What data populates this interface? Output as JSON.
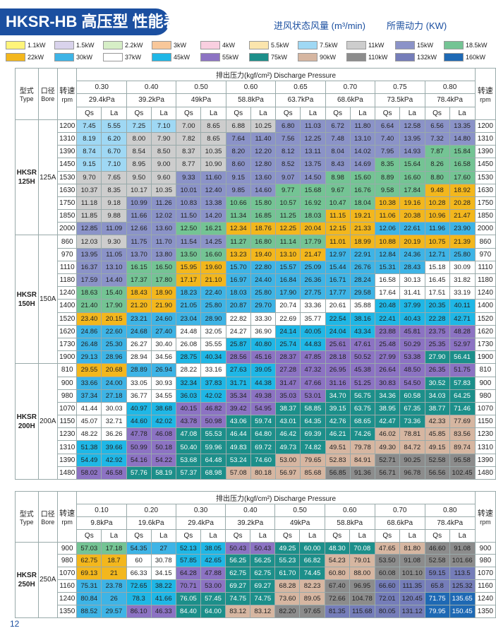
{
  "header": {
    "title": "HKSR-HB 高压型 性能表",
    "air_label": "进风状态风量 (m³/min)",
    "power_label": "所需动力 (KW)"
  },
  "legend": [
    {
      "label": "1.1kW",
      "color": "#fff47a"
    },
    {
      "label": "1.5kW",
      "color": "#d9d3ec"
    },
    {
      "label": "2.2kW",
      "color": "#d6eec6"
    },
    {
      "label": "3kW",
      "color": "#f8c79a"
    },
    {
      "label": "4kW",
      "color": "#f9cfe0"
    },
    {
      "label": "5.5kW",
      "color": "#fbe5ad"
    },
    {
      "label": "7.5kW",
      "color": "#9fd8f4"
    },
    {
      "label": "11kW",
      "color": "#cdcdcd"
    },
    {
      "label": "15kW",
      "color": "#8b93c8"
    },
    {
      "label": "18.5kW",
      "color": "#74c494"
    },
    {
      "label": "22kW",
      "color": "#f3b71d"
    },
    {
      "label": "30kW",
      "color": "#3eb4e6"
    },
    {
      "label": "37kW",
      "color": "#ffffff"
    },
    {
      "label": "45kW",
      "color": "#1fb7e6"
    },
    {
      "label": "55kW",
      "color": "#8c73c3"
    },
    {
      "label": "75kW",
      "color": "#1c8f8a"
    },
    {
      "label": "90kW",
      "color": "#d6b6a1"
    },
    {
      "label": "110kW",
      "color": "#8c8c8c"
    },
    {
      "label": "132kW",
      "color": "#757db9"
    },
    {
      "label": "160kW",
      "color": "#1e69b4"
    }
  ],
  "labels": {
    "type_cn": "型式",
    "type_en": "Type",
    "bore_cn": "口径",
    "bore_en": "Bore",
    "speed_cn": "转速",
    "speed_en": "rpm",
    "qs": "Qs",
    "la": "La",
    "pressure": "排出压力(kgf/cm²) Discharge Pressure"
  },
  "table1": {
    "pressures": [
      {
        "kgf": "0.30",
        "kpa": "29.4kPa"
      },
      {
        "kgf": "0.40",
        "kpa": "39.2kPa"
      },
      {
        "kgf": "0.50",
        "kpa": "49kPa"
      },
      {
        "kgf": "0.60",
        "kpa": "58.8kPa"
      },
      {
        "kgf": "0.65",
        "kpa": "63.7kPa"
      },
      {
        "kgf": "0.70",
        "kpa": "68.6kPa"
      },
      {
        "kgf": "0.75",
        "kpa": "73.5kPa"
      },
      {
        "kgf": "0.80",
        "kpa": "78.4kPa"
      }
    ],
    "groups": [
      {
        "model": [
          "HKSR",
          "125H"
        ],
        "bore": "125A",
        "rows": [
          {
            "rpm": "1200",
            "cells": [
              "7.45",
              "5.55",
              "7.25",
              "7.10",
              "7.00",
              "8.65",
              "6.88",
              "10.25",
              "6.80",
              "11.03",
              "6.72",
              "11.80",
              "6.64",
              "12.58",
              "6.56",
              "13.35"
            ]
          },
          {
            "rpm": "1310",
            "cells": [
              "8.19",
              "6.20",
              "8.00",
              "7.90",
              "7.82",
              "8.65",
              "7.64",
              "11.40",
              "7.56",
              "12.25",
              "7.48",
              "13.10",
              "7.40",
              "13.95",
              "7.32",
              "14.80"
            ]
          },
          {
            "rpm": "1390",
            "cells": [
              "8.74",
              "6.70",
              "8.54",
              "8.50",
              "8.37",
              "10.35",
              "8.20",
              "12.20",
              "8.12",
              "13.11",
              "8.04",
              "14.02",
              "7.95",
              "14.93",
              "7.87",
              "15.84"
            ]
          },
          {
            "rpm": "1450",
            "cells": [
              "9.15",
              "7.10",
              "8.95",
              "9.00",
              "8.77",
              "10.90",
              "8.60",
              "12.80",
              "8.52",
              "13.75",
              "8.43",
              "14.69",
              "8.35",
              "15.64",
              "8.26",
              "16.58"
            ]
          },
          {
            "rpm": "1530",
            "cells": [
              "9.70",
              "7.65",
              "9.50",
              "9.60",
              "9.33",
              "11.60",
              "9.15",
              "13.60",
              "9.07",
              "14.50",
              "8.98",
              "15.60",
              "8.89",
              "16.60",
              "8.80",
              "17.60"
            ]
          },
          {
            "rpm": "1630",
            "cells": [
              "10.37",
              "8.35",
              "10.17",
              "10.35",
              "10.01",
              "12.40",
              "9.85",
              "14.60",
              "9.77",
              "15.68",
              "9.67",
              "16.76",
              "9.58",
              "17.84",
              "9.48",
              "18.92"
            ]
          },
          {
            "rpm": "1750",
            "cells": [
              "11.18",
              "9.18",
              "10.99",
              "11.26",
              "10.83",
              "13.38",
              "10.66",
              "15.80",
              "10.57",
              "16.92",
              "10.47",
              "18.04",
              "10.38",
              "19.16",
              "10.28",
              "20.28"
            ]
          },
          {
            "rpm": "1850",
            "cells": [
              "11.85",
              "9.88",
              "11.66",
              "12.02",
              "11.50",
              "14.20",
              "11.34",
              "16.85",
              "11.25",
              "18.03",
              "11.15",
              "19.21",
              "11.06",
              "20.38",
              "10.96",
              "21.47"
            ]
          },
          {
            "rpm": "2000",
            "cells": [
              "12.85",
              "11.09",
              "12.66",
              "13.60",
              "12.50",
              "16.21",
              "12.34",
              "18.76",
              "12.25",
              "20.04",
              "12.15",
              "21.33",
              "12.06",
              "22.61",
              "11.96",
              "23.90"
            ]
          }
        ]
      },
      {
        "model": [
          "HKSR",
          "150H"
        ],
        "bore": "150A",
        "rows": [
          {
            "rpm": "860",
            "cells": [
              "12.03",
              "9.30",
              "11.75",
              "11.70",
              "11.54",
              "14.25",
              "11.27",
              "16.80",
              "11.14",
              "17.79",
              "11.01",
              "18.99",
              "10.88",
              "20.19",
              "10.75",
              "21.39"
            ]
          },
          {
            "rpm": "970",
            "cells": [
              "13.95",
              "11.05",
              "13.70",
              "13.80",
              "13.50",
              "16.60",
              "13.23",
              "19.40",
              "13.10",
              "21.47",
              "12.97",
              "22.91",
              "12.84",
              "24.36",
              "12.71",
              "25.80"
            ]
          },
          {
            "rpm": "1110",
            "cells": [
              "16.37",
              "13.10",
              "16.15",
              "16.50",
              "15.95",
              "19.60",
              "15.70",
              "22.80",
              "15.57",
              "25.09",
              "15.44",
              "26.76",
              "15.31",
              "28.43",
              "15.18",
              "30.09"
            ]
          },
          {
            "rpm": "1180",
            "cells": [
              "17.59",
              "14.40",
              "17.37",
              "17.80",
              "17.17",
              "21.10",
              "16.97",
              "24.40",
              "16.84",
              "26.36",
              "16.71",
              "28.24",
              "16.58",
              "30.13",
              "16.45",
              "31.82"
            ]
          },
          {
            "rpm": "1240",
            "cells": [
              "18.63",
              "15.40",
              "18.43",
              "18.90",
              "18.23",
              "22.40",
              "18.03",
              "25.80",
              "17.90",
              "27.75",
              "17.77",
              "29.58",
              "17.64",
              "31.41",
              "17.51",
              "33.19"
            ]
          },
          {
            "rpm": "1400",
            "cells": [
              "21.40",
              "17.90",
              "21.20",
              "21.90",
              "21.05",
              "25.80",
              "20.87",
              "29.70",
              "20.74",
              "33.36",
              "20.61",
              "35.88",
              "20.48",
              "37.99",
              "20.35",
              "40.11"
            ]
          },
          {
            "rpm": "1520",
            "cells": [
              "23.40",
              "20.15",
              "23.21",
              "24.60",
              "23.04",
              "28.90",
              "22.82",
              "33.30",
              "22.69",
              "35.77",
              "22.54",
              "38.16",
              "22.41",
              "40.43",
              "22.28",
              "42.71"
            ]
          },
          {
            "rpm": "1620",
            "cells": [
              "24.86",
              "22.60",
              "24.68",
              "27.40",
              "24.48",
              "32.05",
              "24.27",
              "36.90",
              "24.14",
              "40.05",
              "24.04",
              "43.34",
              "23.88",
              "45.81",
              "23.75",
              "48.28"
            ]
          },
          {
            "rpm": "1730",
            "cells": [
              "26.48",
              "25.30",
              "26.27",
              "30.40",
              "26.08",
              "35.55",
              "25.87",
              "40.80",
              "25.74",
              "44.83",
              "25.61",
              "47.61",
              "25.48",
              "50.29",
              "25.35",
              "52.97"
            ]
          },
          {
            "rpm": "1900",
            "cells": [
              "29.13",
              "28.96",
              "28.94",
              "34.56",
              "28.75",
              "40.34",
              "28.56",
              "45.16",
              "28.37",
              "47.85",
              "28.18",
              "50.52",
              "27.99",
              "53.38",
              "27.90",
              "56.41"
            ]
          }
        ]
      },
      {
        "model": [
          "HKSR",
          "200H"
        ],
        "bore": "200A",
        "rows": [
          {
            "rpm": "810",
            "cells": [
              "29.55",
              "20.68",
              "28.89",
              "26.94",
              "28.22",
              "33.16",
              "27.63",
              "39.05",
              "27.28",
              "47.32",
              "26.95",
              "45.38",
              "26.64",
              "48.50",
              "26.35",
              "51.75"
            ]
          },
          {
            "rpm": "900",
            "cells": [
              "33.66",
              "24.00",
              "33.05",
              "30.93",
              "32.34",
              "37.83",
              "31.71",
              "44.38",
              "31.47",
              "47.66",
              "31.16",
              "51.25",
              "30.83",
              "54.50",
              "30.52",
              "57.83"
            ]
          },
          {
            "rpm": "980",
            "cells": [
              "37.34",
              "27.18",
              "36.77",
              "34.55",
              "36.03",
              "42.02",
              "35.34",
              "49.38",
              "35.03",
              "53.01",
              "34.70",
              "56.75",
              "34.36",
              "60.58",
              "34.03",
              "64.25"
            ]
          },
          {
            "rpm": "1070",
            "cells": [
              "41.44",
              "30.03",
              "40.97",
              "38.68",
              "40.15",
              "46.82",
              "39.42",
              "54.95",
              "38.37",
              "58.85",
              "39.15",
              "63.75",
              "38.95",
              "67.35",
              "38.77",
              "71.46"
            ]
          },
          {
            "rpm": "1150",
            "cells": [
              "45.07",
              "32.71",
              "44.60",
              "42.02",
              "43.78",
              "50.98",
              "43.06",
              "59.74",
              "43.01",
              "64.35",
              "42.76",
              "68.65",
              "42.47",
              "73.36",
              "42.33",
              "77.69"
            ]
          },
          {
            "rpm": "1230",
            "cells": [
              "48.22",
              "36.26",
              "47.78",
              "46.08",
              "47.08",
              "55.53",
              "46.44",
              "64.80",
              "46.42",
              "69.39",
              "46.21",
              "74.26",
              "46.02",
              "78.81",
              "45.85",
              "83.56"
            ]
          },
          {
            "rpm": "1310",
            "cells": [
              "51.38",
              "39.66",
              "50.99",
              "50.18",
              "50.40",
              "59.96",
              "49.83",
              "69.72",
              "49.73",
              "74.82",
              "49.51",
              "79.78",
              "49.30",
              "84.72",
              "49.15",
              "89.74"
            ]
          },
          {
            "rpm": "1390",
            "cells": [
              "54.49",
              "42.92",
              "54.16",
              "54.22",
              "53.68",
              "64.48",
              "53.24",
              "74.60",
              "53.00",
              "79.65",
              "52.83",
              "84.91",
              "52.71",
              "90.25",
              "52.58",
              "95.58"
            ]
          },
          {
            "rpm": "1480",
            "cells": [
              "58.02",
              "46.58",
              "57.76",
              "58.19",
              "57.37",
              "68.98",
              "57.08",
              "80.18",
              "56.97",
              "85.68",
              "56.85",
              "91.36",
              "56.71",
              "96.78",
              "56.56",
              "102.45"
            ]
          }
        ]
      }
    ]
  },
  "table2": {
    "pressures": [
      {
        "kgf": "0.10",
        "kpa": "9.8kPa"
      },
      {
        "kgf": "0.20",
        "kpa": "19.6kPa"
      },
      {
        "kgf": "0.30",
        "kpa": "29.4kPa"
      },
      {
        "kgf": "0.40",
        "kpa": "39.2kPa"
      },
      {
        "kgf": "0.50",
        "kpa": "49kPa"
      },
      {
        "kgf": "0.60",
        "kpa": "58.8kPa"
      },
      {
        "kgf": "0.70",
        "kpa": "68.6kPa"
      },
      {
        "kgf": "0.80",
        "kpa": "78.4kPa"
      }
    ],
    "groups": [
      {
        "model": [
          "HKSR",
          "250H"
        ],
        "bore": "250A",
        "rows": [
          {
            "rpm": "900",
            "cells": [
              "57.03",
              "17.18",
              "54.35",
              "27",
              "52.13",
              "38.05",
              "50.43",
              "50.43",
              "49.25",
              "60.00",
              "48.30",
              "70.08",
              "47.65",
              "81.80",
              "46.60",
              "91.08"
            ]
          },
          {
            "rpm": "980",
            "cells": [
              "62.75",
              "18.7",
              "60",
              "30.78",
              "57.85",
              "42.65",
              "56.25",
              "56.25",
              "55.23",
              "66.82",
              "54.23",
              "79.01",
              "53.50",
              "91.08",
              "52.58",
              "101.66"
            ]
          },
          {
            "rpm": "1070",
            "cells": [
              "69.13",
              "21",
              "66.33",
              "34.15",
              "64.28",
              "47.88",
              "62.75",
              "62.75",
              "61.70",
              "74.45",
              "60.80",
              "88.00",
              "60.08",
              "101.10",
              "59.15",
              "113.5"
            ]
          },
          {
            "rpm": "1160",
            "cells": [
              "75.31",
              "23.78",
              "72.65",
              "38.22",
              "70.71",
              "53.00",
              "69.27",
              "69.27",
              "68.28",
              "82.23",
              "67.40",
              "96.95",
              "66.60",
              "111.35",
              "65.8",
              "125.32"
            ]
          },
          {
            "rpm": "1240",
            "cells": [
              "80.84",
              "26",
              "78.3",
              "41.66",
              "76.05",
              "57.45",
              "74.75",
              "74.75",
              "73.60",
              "89.05",
              "72.66",
              "104.78",
              "72.01",
              "120.45",
              "71.75",
              "135.65"
            ]
          },
          {
            "rpm": "1350",
            "cells": [
              "88.52",
              "29.57",
              "86.10",
              "46.33",
              "84.40",
              "64.00",
              "83.12",
              "83.12",
              "82.20",
              "97.65",
              "81.35",
              "115.68",
              "80.05",
              "131.12",
              "79.95",
              "150.45"
            ]
          }
        ]
      }
    ]
  },
  "footer": {
    "page": "12"
  }
}
